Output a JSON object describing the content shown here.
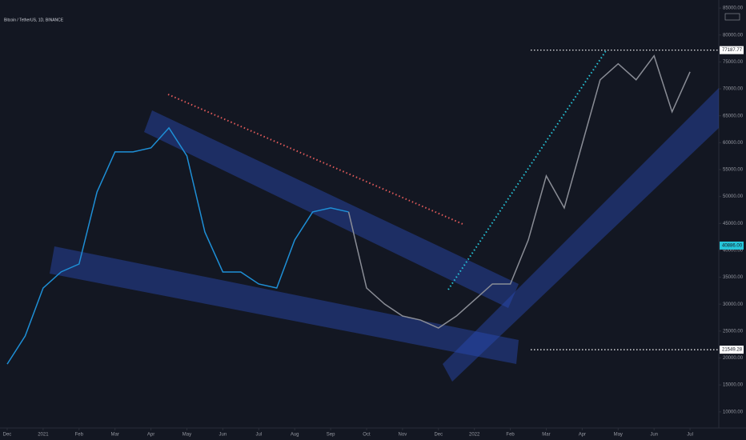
{
  "chart_data": {
    "type": "line",
    "title": "Bitcoin / TetherUS, 1D, BINANCE",
    "x": [
      0,
      0.5,
      1,
      1.5,
      2,
      2.5,
      3,
      3.5,
      4,
      4.5,
      5,
      5.5,
      6,
      6.5,
      7,
      7.5,
      8,
      8.5,
      9,
      9.5,
      10,
      10.5,
      11,
      11.5,
      12,
      12.5,
      13,
      13.5,
      14,
      14.5,
      15,
      15.5,
      16,
      16.5,
      17,
      17.5,
      18,
      18.5,
      19
    ],
    "series": [
      {
        "color": "#1e8fd6",
        "values": [
          18870,
          24080,
          33000,
          36000,
          37460,
          50850,
          58290,
          58290,
          59030,
          62750,
          57550,
          43410,
          35980,
          35980,
          33750,
          33000,
          41930,
          47130,
          47880,
          47130,
          null,
          null,
          null,
          null,
          null,
          null,
          null,
          null,
          null,
          null,
          null,
          null,
          null,
          null,
          null,
          null,
          null,
          null,
          null
        ]
      },
      {
        "color": "#8a8d96",
        "values": [
          null,
          null,
          null,
          null,
          null,
          null,
          null,
          null,
          null,
          null,
          null,
          null,
          null,
          null,
          null,
          null,
          null,
          null,
          null,
          47130,
          33000,
          30030,
          27800,
          27050,
          25570,
          27800,
          30770,
          33750,
          33750,
          41930,
          53830,
          47880,
          59770,
          71680,
          74650,
          71680,
          76140,
          65720,
          73160
        ]
      }
    ],
    "xlim": [
      -0.2,
      19.8
    ],
    "xticks": [
      {
        "value": 0,
        "label": "Dec"
      },
      {
        "value": 1,
        "label": "2021"
      },
      {
        "value": 2,
        "label": "Feb"
      },
      {
        "value": 3,
        "label": "Mar"
      },
      {
        "value": 4,
        "label": "Apr"
      },
      {
        "value": 5,
        "label": "May"
      },
      {
        "value": 6,
        "label": "Jun"
      },
      {
        "value": 7,
        "label": "Jul"
      },
      {
        "value": 8,
        "label": "Aug"
      },
      {
        "value": 9,
        "label": "Sep"
      },
      {
        "value": 10,
        "label": "Oct"
      },
      {
        "value": 11,
        "label": "Nov"
      },
      {
        "value": 12,
        "label": "Dec"
      },
      {
        "value": 13,
        "label": "2022"
      },
      {
        "value": 14,
        "label": "Feb"
      },
      {
        "value": 15,
        "label": "Mar"
      },
      {
        "value": 16,
        "label": "Apr"
      },
      {
        "value": 17,
        "label": "May"
      },
      {
        "value": 18,
        "label": "Jun"
      },
      {
        "value": 19,
        "label": "Jul"
      }
    ],
    "ylim": [
      7000,
      86500
    ],
    "yticks": [
      {
        "value": 10000,
        "label": "10000.00"
      },
      {
        "value": 15000,
        "label": "15000.00"
      },
      {
        "value": 20000,
        "label": "20000.00"
      },
      {
        "value": 25000,
        "label": "25000.00"
      },
      {
        "value": 30000,
        "label": "30000.00"
      },
      {
        "value": 35000,
        "label": "35000.00"
      },
      {
        "value": 40000,
        "label": "40000.00"
      },
      {
        "value": 45000,
        "label": "45000.00"
      },
      {
        "value": 50000,
        "label": "50000.00"
      },
      {
        "value": 55000,
        "label": "55000.00"
      },
      {
        "value": 60000,
        "label": "60000.00"
      },
      {
        "value": 65000,
        "label": "65000.00"
      },
      {
        "value": 70000,
        "label": "70000.00"
      },
      {
        "value": 75000,
        "label": "75000.00"
      },
      {
        "value": 80000,
        "label": "80000.00"
      },
      {
        "value": 85000,
        "label": "85000.00"
      }
    ],
    "price_labels": [
      {
        "value": 77187.77,
        "label": "77187.77",
        "color": "#ffffff"
      },
      {
        "value": 40886,
        "label": "40886.00",
        "color": "#26c6da"
      },
      {
        "value": 21549.28,
        "label": "21549.28",
        "color": "#ffffff"
      }
    ]
  }
}
